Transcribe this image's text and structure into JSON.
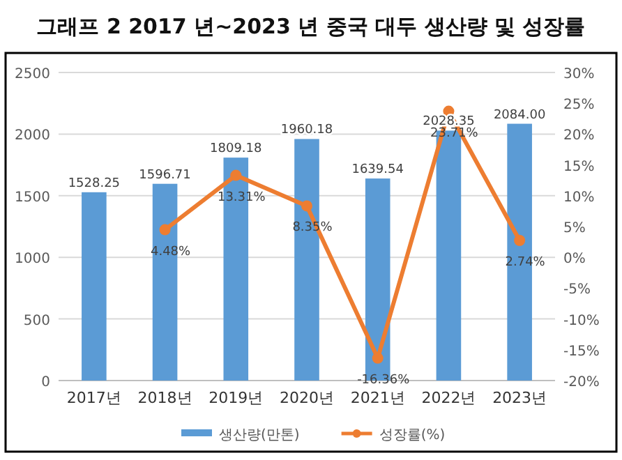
{
  "chart_data": {
    "type": "bar",
    "title": "그래프 2 2017 년~2023 년 중국 대두 생산량 및 성장률",
    "categories": [
      "2017년",
      "2018년",
      "2019년",
      "2020년",
      "2021년",
      "2022년",
      "2023년"
    ],
    "series": [
      {
        "name": "생산량(만톤)",
        "color": "#5b9bd5",
        "values": [
          1528.25,
          1596.71,
          1809.18,
          1960.18,
          1639.54,
          2028.35,
          2084.0
        ],
        "value_labels": [
          "1528.25",
          "1596.71",
          "1809.18",
          "1960.18",
          "1639.54",
          "2028.35",
          "2084.00"
        ]
      },
      {
        "name": "성장률(%)",
        "type": "line",
        "axis": "y2",
        "color": "#ed7d31",
        "marker": "circle",
        "values": [
          null,
          4.48,
          13.31,
          8.35,
          -16.36,
          23.71,
          2.74
        ],
        "value_labels": [
          null,
          "4.48%",
          "13.31%",
          "8.35%",
          "-16.36%",
          "23.71%",
          "2.74%"
        ]
      }
    ],
    "ylim": [
      0,
      2500
    ],
    "yticks": [
      0,
      500,
      1000,
      1500,
      2000,
      2500
    ],
    "y2lim": [
      -20,
      30
    ],
    "y2ticks": [
      {
        "value": -20,
        "label": "-20%"
      },
      {
        "value": -15,
        "label": "-15%"
      },
      {
        "value": -10,
        "label": "-10%"
      },
      {
        "value": -5,
        "label": "-5%"
      },
      {
        "value": 0,
        "label": "0%"
      },
      {
        "value": 5,
        "label": "5%"
      },
      {
        "value": 10,
        "label": "10%"
      },
      {
        "value": 15,
        "label": "15%"
      },
      {
        "value": 20,
        "label": "20%"
      },
      {
        "value": 25,
        "label": "25%"
      },
      {
        "value": 30,
        "label": "30%"
      }
    ],
    "grid": "y",
    "legend": "bottom"
  }
}
